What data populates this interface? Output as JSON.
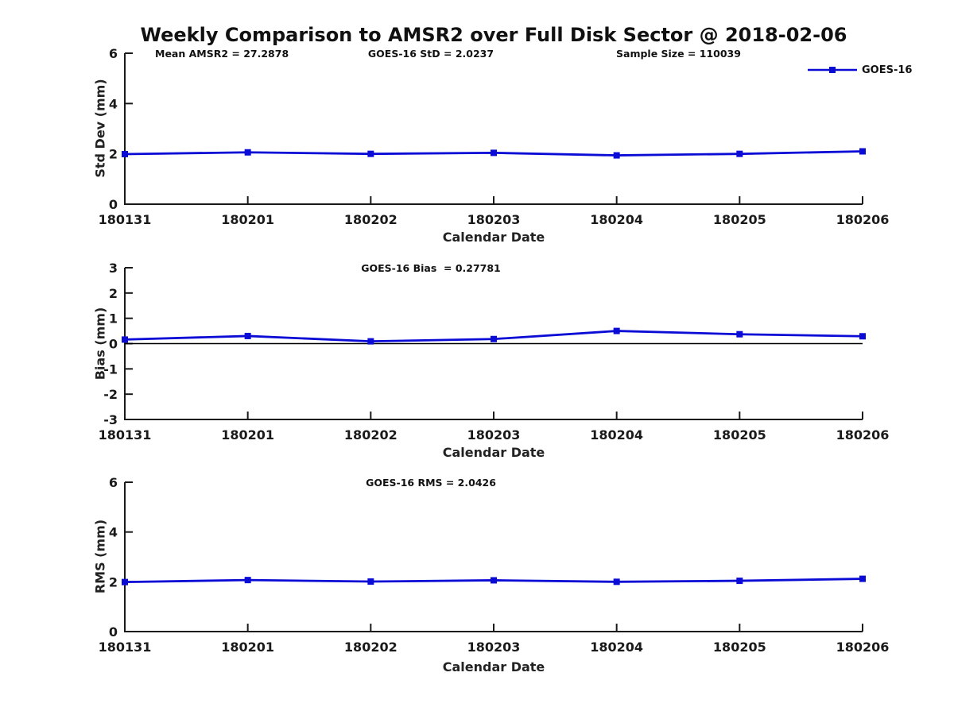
{
  "title": "Weekly Comparison to AMSR2 over Full Disk Sector @ 2018-02-06",
  "legend": {
    "label": "GOES-16",
    "color": "#0b0bd6",
    "position": "top-right"
  },
  "colors": {
    "line": "#0b0bd6",
    "axis": "#1a1a1a",
    "zero_line": "#000000",
    "text": "#1a1a1a"
  },
  "chart_data": [
    {
      "type": "line",
      "id": "std-dev",
      "ylabel": "Std Dev (mm)",
      "xlabel": "Calendar Date",
      "annotations": [
        "Mean AMSR2 = 27.2878",
        "GOES-16 StD = 2.0237",
        "Sample Size = 110039"
      ],
      "categories": [
        "180131",
        "180201",
        "180202",
        "180203",
        "180204",
        "180205",
        "180206"
      ],
      "series": [
        {
          "name": "GOES-16",
          "values": [
            1.99,
            2.06,
            2.0,
            2.04,
            1.94,
            2.0,
            2.1
          ]
        }
      ],
      "ylim": [
        0,
        6
      ],
      "yticks": [
        0,
        2,
        4,
        6
      ],
      "zero_line": false,
      "grid": false,
      "legend_position": "top-right"
    },
    {
      "type": "line",
      "id": "bias",
      "title": "GOES-16 Bias  = 0.27781",
      "ylabel": "Bias (mm)",
      "xlabel": "Calendar Date",
      "categories": [
        "180131",
        "180201",
        "180202",
        "180203",
        "180204",
        "180205",
        "180206"
      ],
      "series": [
        {
          "name": "GOES-16",
          "values": [
            0.16,
            0.3,
            0.09,
            0.18,
            0.5,
            0.37,
            0.29
          ]
        }
      ],
      "ylim": [
        -3,
        3
      ],
      "yticks": [
        -3,
        -2,
        -1,
        0,
        1,
        2,
        3
      ],
      "zero_line": true,
      "grid": false
    },
    {
      "type": "line",
      "id": "rms",
      "title": "GOES-16 RMS = 2.0426",
      "ylabel": "RMS (mm)",
      "xlabel": "Calendar Date",
      "categories": [
        "180131",
        "180201",
        "180202",
        "180203",
        "180204",
        "180205",
        "180206"
      ],
      "series": [
        {
          "name": "GOES-16",
          "values": [
            1.99,
            2.07,
            2.01,
            2.06,
            2.0,
            2.04,
            2.12
          ]
        }
      ],
      "ylim": [
        0,
        6
      ],
      "yticks": [
        0,
        2,
        4,
        6
      ],
      "zero_line": false,
      "grid": false
    }
  ]
}
